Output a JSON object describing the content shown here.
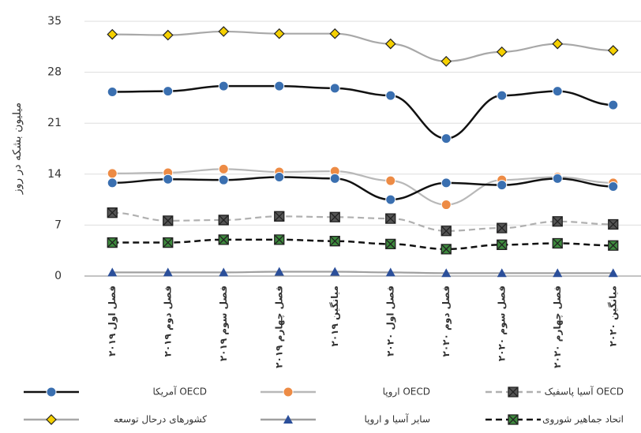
{
  "chart_data": {
    "type": "line",
    "y_label": "میلیون بشکه در روز",
    "categories": [
      "فصل اول ۲۰۱۹",
      "فصل دوم ۲۰۱۹",
      "فصل سوم ۲۰۱۹",
      "فصل چهارم ۲۰۱۹",
      "میانگین ۲۰۱۹",
      "فصل اول ۲۰۲۰",
      "فصل دوم ۲۰۲۰",
      "فصل سوم ۲۰۲۰",
      "فصل چهارم ۲۰۲۰",
      "میانگین ۲۰۲۰"
    ],
    "ylim": [
      0,
      35
    ],
    "yticks": [
      0,
      7,
      14,
      21,
      28,
      35
    ],
    "grid": true,
    "series": [
      {
        "name": "آمریکا OECD",
        "color": "#111111",
        "marker": "circle",
        "marker_color": "#3a6fb0",
        "dash": false,
        "values": [
          25.3,
          25.4,
          26.1,
          26.1,
          25.8,
          24.8,
          18.9,
          24.8,
          25.4,
          23.5
        ]
      },
      {
        "name": "اروپا OECD",
        "color": "#b8b8b8",
        "marker": "circle",
        "marker_color": "#ed8b45",
        "dash": false,
        "values": [
          14.1,
          14.2,
          14.7,
          14.3,
          14.4,
          13.1,
          9.8,
          13.2,
          13.6,
          12.8
        ]
      },
      {
        "name": "آسیا پاسفیک OECD",
        "color": "#b0b0b0",
        "marker": "xbox",
        "marker_color": "#555555",
        "dash": true,
        "values": [
          8.7,
          7.6,
          7.7,
          8.2,
          8.1,
          7.9,
          6.2,
          6.6,
          7.5,
          7.1
        ]
      },
      {
        "name": "کشورهای درحال توسعه",
        "color": "#a8a8a8",
        "marker": "diamond",
        "marker_color": "#f5d000",
        "dash": false,
        "values": [
          33.2,
          33.1,
          33.6,
          33.3,
          33.3,
          31.9,
          29.5,
          30.8,
          31.9,
          31.0
        ]
      },
      {
        "name": "سایر آسیا و اروپا",
        "color": "#a0a0a0",
        "marker": "triangle",
        "marker_color": "#2b4f9a",
        "dash": false,
        "values": [
          0.5,
          0.5,
          0.5,
          0.6,
          0.6,
          0.5,
          0.4,
          0.4,
          0.4,
          0.4
        ]
      },
      {
        "name": "اتحاد جماهیر شوروی",
        "color": "#111111",
        "marker": "xbox",
        "marker_color": "#3d8a3d",
        "dash": true,
        "values": [
          4.6,
          4.6,
          5.0,
          5.0,
          4.8,
          4.4,
          3.7,
          4.3,
          4.5,
          4.2
        ]
      },
      {
        "color": "#111111",
        "marker": "circle",
        "marker_color": "#3a6fb0",
        "dash": false,
        "values": [
          12.8,
          13.3,
          13.2,
          13.6,
          13.4,
          10.5,
          12.8,
          12.5,
          13.4,
          12.3
        ]
      }
    ]
  }
}
